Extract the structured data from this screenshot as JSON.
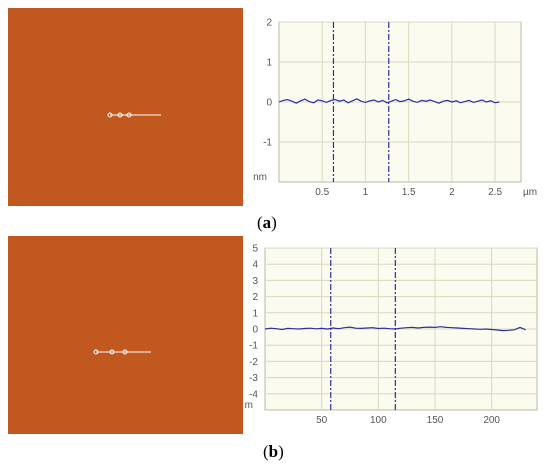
{
  "panels": [
    {
      "label_open": "(",
      "label_letter": "a",
      "label_close": ")"
    },
    {
      "label_open": "(",
      "label_letter": "b",
      "label_close": ")"
    }
  ],
  "colors": {
    "afm_image": "#c0581f",
    "plot_background": "#fbfbef",
    "grid": "#d9d9c0",
    "profile_line": "#2b2fa0",
    "cursor_line": "#2b2fa0",
    "tick_label": "#555555",
    "marker_line": "#ffffff"
  },
  "chart_data": [
    {
      "type": "line",
      "title": "",
      "xlabel": "µm",
      "ylabel": "nm",
      "xlim": [
        0,
        2.8
      ],
      "ylim": [
        -2,
        2
      ],
      "x_ticks": [
        0.5,
        1,
        1.5,
        2,
        2.5
      ],
      "x_tick_labels": [
        "0.5",
        "1",
        "1.5",
        "2",
        "2.5"
      ],
      "y_ticks": [
        2,
        1,
        0,
        -1
      ],
      "y_tick_labels": [
        "2",
        "1",
        "0",
        "-1"
      ],
      "grid": true,
      "cursors": [
        0.63,
        1.27
      ],
      "series": [
        {
          "x": [
            0.0,
            0.05,
            0.1,
            0.15,
            0.2,
            0.25,
            0.3,
            0.35,
            0.4,
            0.45,
            0.5,
            0.55,
            0.6,
            0.65,
            0.7,
            0.75,
            0.8,
            0.85,
            0.9,
            0.95,
            1.0,
            1.05,
            1.1,
            1.15,
            1.2,
            1.25,
            1.3,
            1.35,
            1.4,
            1.45,
            1.5,
            1.55,
            1.6,
            1.65,
            1.7,
            1.75,
            1.8,
            1.85,
            1.9,
            1.95,
            2.0,
            2.05,
            2.1,
            2.15,
            2.2,
            2.25,
            2.3,
            2.35,
            2.4,
            2.45,
            2.5,
            2.55
          ],
          "y": [
            0.0,
            0.04,
            0.06,
            0.02,
            -0.03,
            0.03,
            0.07,
            0.01,
            -0.02,
            0.05,
            0.03,
            -0.01,
            0.04,
            0.06,
            0.02,
            0.05,
            -0.02,
            0.03,
            0.08,
            0.02,
            -0.01,
            0.03,
            0.05,
            0.0,
            0.04,
            -0.02,
            0.02,
            0.06,
            0.01,
            0.03,
            0.07,
            0.02,
            -0.01,
            0.04,
            0.02,
            0.05,
            0.01,
            -0.03,
            0.02,
            0.04,
            0.0,
            0.03,
            -0.02,
            0.01,
            0.04,
            -0.01,
            0.02,
            0.05,
            0.0,
            0.03,
            -0.02,
            0.0
          ]
        }
      ]
    },
    {
      "type": "line",
      "title": "",
      "xlabel": "",
      "ylabel": "nm",
      "xlim": [
        0,
        240
      ],
      "ylim": [
        -5,
        5
      ],
      "x_ticks": [
        50,
        100,
        150,
        200
      ],
      "x_tick_labels": [
        "50",
        "100",
        "150",
        "200"
      ],
      "y_ticks": [
        5,
        4,
        3,
        2,
        1,
        0,
        -1,
        -2,
        -3,
        -4
      ],
      "y_tick_labels": [
        "5",
        "4",
        "3",
        "2",
        "1",
        "0",
        "-1",
        "-2",
        "-3",
        "-4"
      ],
      "grid": true,
      "cursors": [
        58,
        115
      ],
      "series": [
        {
          "x": [
            0,
            5,
            10,
            15,
            20,
            25,
            30,
            35,
            40,
            45,
            50,
            55,
            60,
            65,
            70,
            75,
            80,
            85,
            90,
            95,
            100,
            105,
            110,
            115,
            120,
            125,
            130,
            135,
            140,
            145,
            150,
            155,
            160,
            165,
            170,
            175,
            180,
            185,
            190,
            195,
            200,
            205,
            210,
            215,
            220,
            225,
            230
          ],
          "y": [
            0.0,
            0.05,
            0.02,
            -0.03,
            0.04,
            0.02,
            0.0,
            0.03,
            0.05,
            0.01,
            0.04,
            0.0,
            0.06,
            0.02,
            0.08,
            0.12,
            0.05,
            0.04,
            0.06,
            0.08,
            0.03,
            0.05,
            0.02,
            0.0,
            0.05,
            0.08,
            0.1,
            0.06,
            0.1,
            0.12,
            0.1,
            0.14,
            0.1,
            0.08,
            0.06,
            0.04,
            0.02,
            0.0,
            -0.02,
            0.0,
            -0.03,
            -0.06,
            -0.1,
            -0.08,
            -0.05,
            0.1,
            -0.05
          ]
        }
      ]
    }
  ]
}
